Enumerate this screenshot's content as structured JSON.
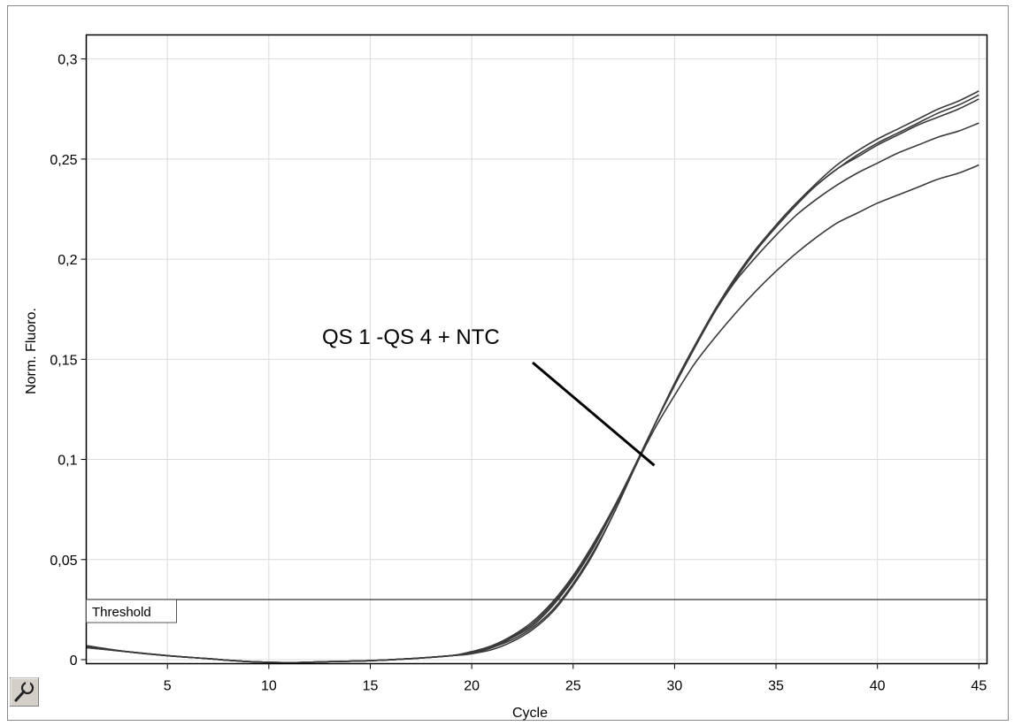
{
  "chart_data": {
    "type": "line",
    "xlabel": "Cycle",
    "ylabel": "Norm. Fluoro.",
    "xlim": [
      1,
      45.4
    ],
    "ylim": [
      -0.002,
      0.312
    ],
    "x_ticks": [
      5,
      10,
      15,
      20,
      25,
      30,
      35,
      40,
      45
    ],
    "x_tick_labels": [
      "5",
      "10",
      "15",
      "20",
      "25",
      "30",
      "35",
      "40",
      "45"
    ],
    "y_ticks": [
      0,
      0.05,
      0.1,
      0.15,
      0.2,
      0.25,
      0.3
    ],
    "y_tick_labels": [
      "0",
      "0,05",
      "0,1",
      "0,15",
      "0,2",
      "0,25",
      "0,3"
    ],
    "grid": true,
    "threshold": {
      "label": "Threshold",
      "value": 0.03
    },
    "annotation": {
      "text": "QS 1 -QS 4 + NTC",
      "x": 29,
      "y": 0.097
    },
    "series": [
      {
        "x": [
          1,
          3,
          5,
          7,
          9,
          11,
          13,
          15,
          17,
          19,
          20,
          21,
          22,
          23,
          24,
          25,
          26,
          27,
          28,
          29,
          30,
          31,
          32,
          33,
          34,
          35,
          36,
          37,
          38,
          39,
          40,
          41,
          42,
          43,
          44,
          45
        ],
        "y": [
          0.007,
          0.004,
          0.002,
          0.0005,
          -0.001,
          -0.0015,
          -0.001,
          -0.0005,
          0.0005,
          0.002,
          0.004,
          0.007,
          0.012,
          0.019,
          0.029,
          0.042,
          0.058,
          0.076,
          0.096,
          0.117,
          0.137,
          0.156,
          0.174,
          0.19,
          0.204,
          0.217,
          0.228,
          0.238,
          0.247,
          0.254,
          0.26,
          0.265,
          0.27,
          0.275,
          0.279,
          0.284
        ]
      },
      {
        "x": [
          1,
          3,
          5,
          7,
          9,
          11,
          13,
          15,
          17,
          19,
          20,
          21,
          22,
          23,
          24,
          25,
          26,
          27,
          28,
          29,
          30,
          31,
          32,
          33,
          34,
          35,
          36,
          37,
          38,
          39,
          40,
          41,
          42,
          43,
          44,
          45
        ],
        "y": [
          0.006,
          0.004,
          0.002,
          0.0005,
          -0.001,
          -0.0015,
          -0.001,
          -0.0005,
          0.0005,
          0.002,
          0.004,
          0.006,
          0.011,
          0.017,
          0.027,
          0.04,
          0.056,
          0.075,
          0.096,
          0.117,
          0.138,
          0.157,
          0.175,
          0.191,
          0.205,
          0.217,
          0.228,
          0.237,
          0.245,
          0.251,
          0.257,
          0.262,
          0.267,
          0.271,
          0.275,
          0.28
        ]
      },
      {
        "x": [
          1,
          3,
          5,
          7,
          9,
          11,
          13,
          15,
          17,
          19,
          20,
          21,
          22,
          23,
          24,
          25,
          26,
          27,
          28,
          29,
          30,
          31,
          32,
          33,
          34,
          35,
          36,
          37,
          38,
          39,
          40,
          41,
          42,
          43,
          44,
          45
        ],
        "y": [
          0.007,
          0.004,
          0.002,
          0.0005,
          -0.001,
          -0.0015,
          -0.001,
          -0.0005,
          0.0005,
          0.002,
          0.003,
          0.006,
          0.01,
          0.016,
          0.025,
          0.038,
          0.054,
          0.073,
          0.095,
          0.117,
          0.138,
          0.157,
          0.174,
          0.189,
          0.201,
          0.212,
          0.222,
          0.23,
          0.237,
          0.243,
          0.248,
          0.253,
          0.257,
          0.261,
          0.264,
          0.268
        ]
      },
      {
        "x": [
          1,
          3,
          5,
          7,
          9,
          11,
          13,
          15,
          17,
          19,
          20,
          21,
          22,
          23,
          24,
          25,
          26,
          27,
          28,
          29,
          30,
          31,
          32,
          33,
          34,
          35,
          36,
          37,
          38,
          39,
          40,
          41,
          42,
          43,
          44,
          45
        ],
        "y": [
          0.006,
          0.004,
          0.002,
          0.0005,
          -0.001,
          -0.0015,
          -0.001,
          -0.0005,
          0.0005,
          0.002,
          0.003,
          0.005,
          0.009,
          0.015,
          0.024,
          0.037,
          0.053,
          0.073,
          0.095,
          0.115,
          0.132,
          0.148,
          0.161,
          0.173,
          0.184,
          0.194,
          0.203,
          0.211,
          0.218,
          0.223,
          0.228,
          0.232,
          0.236,
          0.24,
          0.243,
          0.247
        ]
      },
      {
        "x": [
          1,
          3,
          5,
          7,
          9,
          11,
          13,
          15,
          17,
          19,
          20,
          21,
          22,
          23,
          24,
          25,
          26,
          27,
          28,
          29,
          30,
          31,
          32,
          33,
          34,
          35,
          36,
          37,
          38,
          39,
          40,
          41,
          42,
          43,
          44,
          45
        ],
        "y": [
          0.0065,
          0.004,
          0.002,
          0.0005,
          -0.001,
          -0.0015,
          -0.001,
          -0.0005,
          0.0005,
          0.002,
          0.0035,
          0.0065,
          0.0115,
          0.018,
          0.028,
          0.041,
          0.057,
          0.075,
          0.096,
          0.117,
          0.137,
          0.156,
          0.174,
          0.19,
          0.204,
          0.216,
          0.227,
          0.237,
          0.245,
          0.252,
          0.258,
          0.263,
          0.268,
          0.273,
          0.277,
          0.282
        ]
      }
    ]
  },
  "toolbar": {
    "tool_icon": "wrench-icon"
  }
}
